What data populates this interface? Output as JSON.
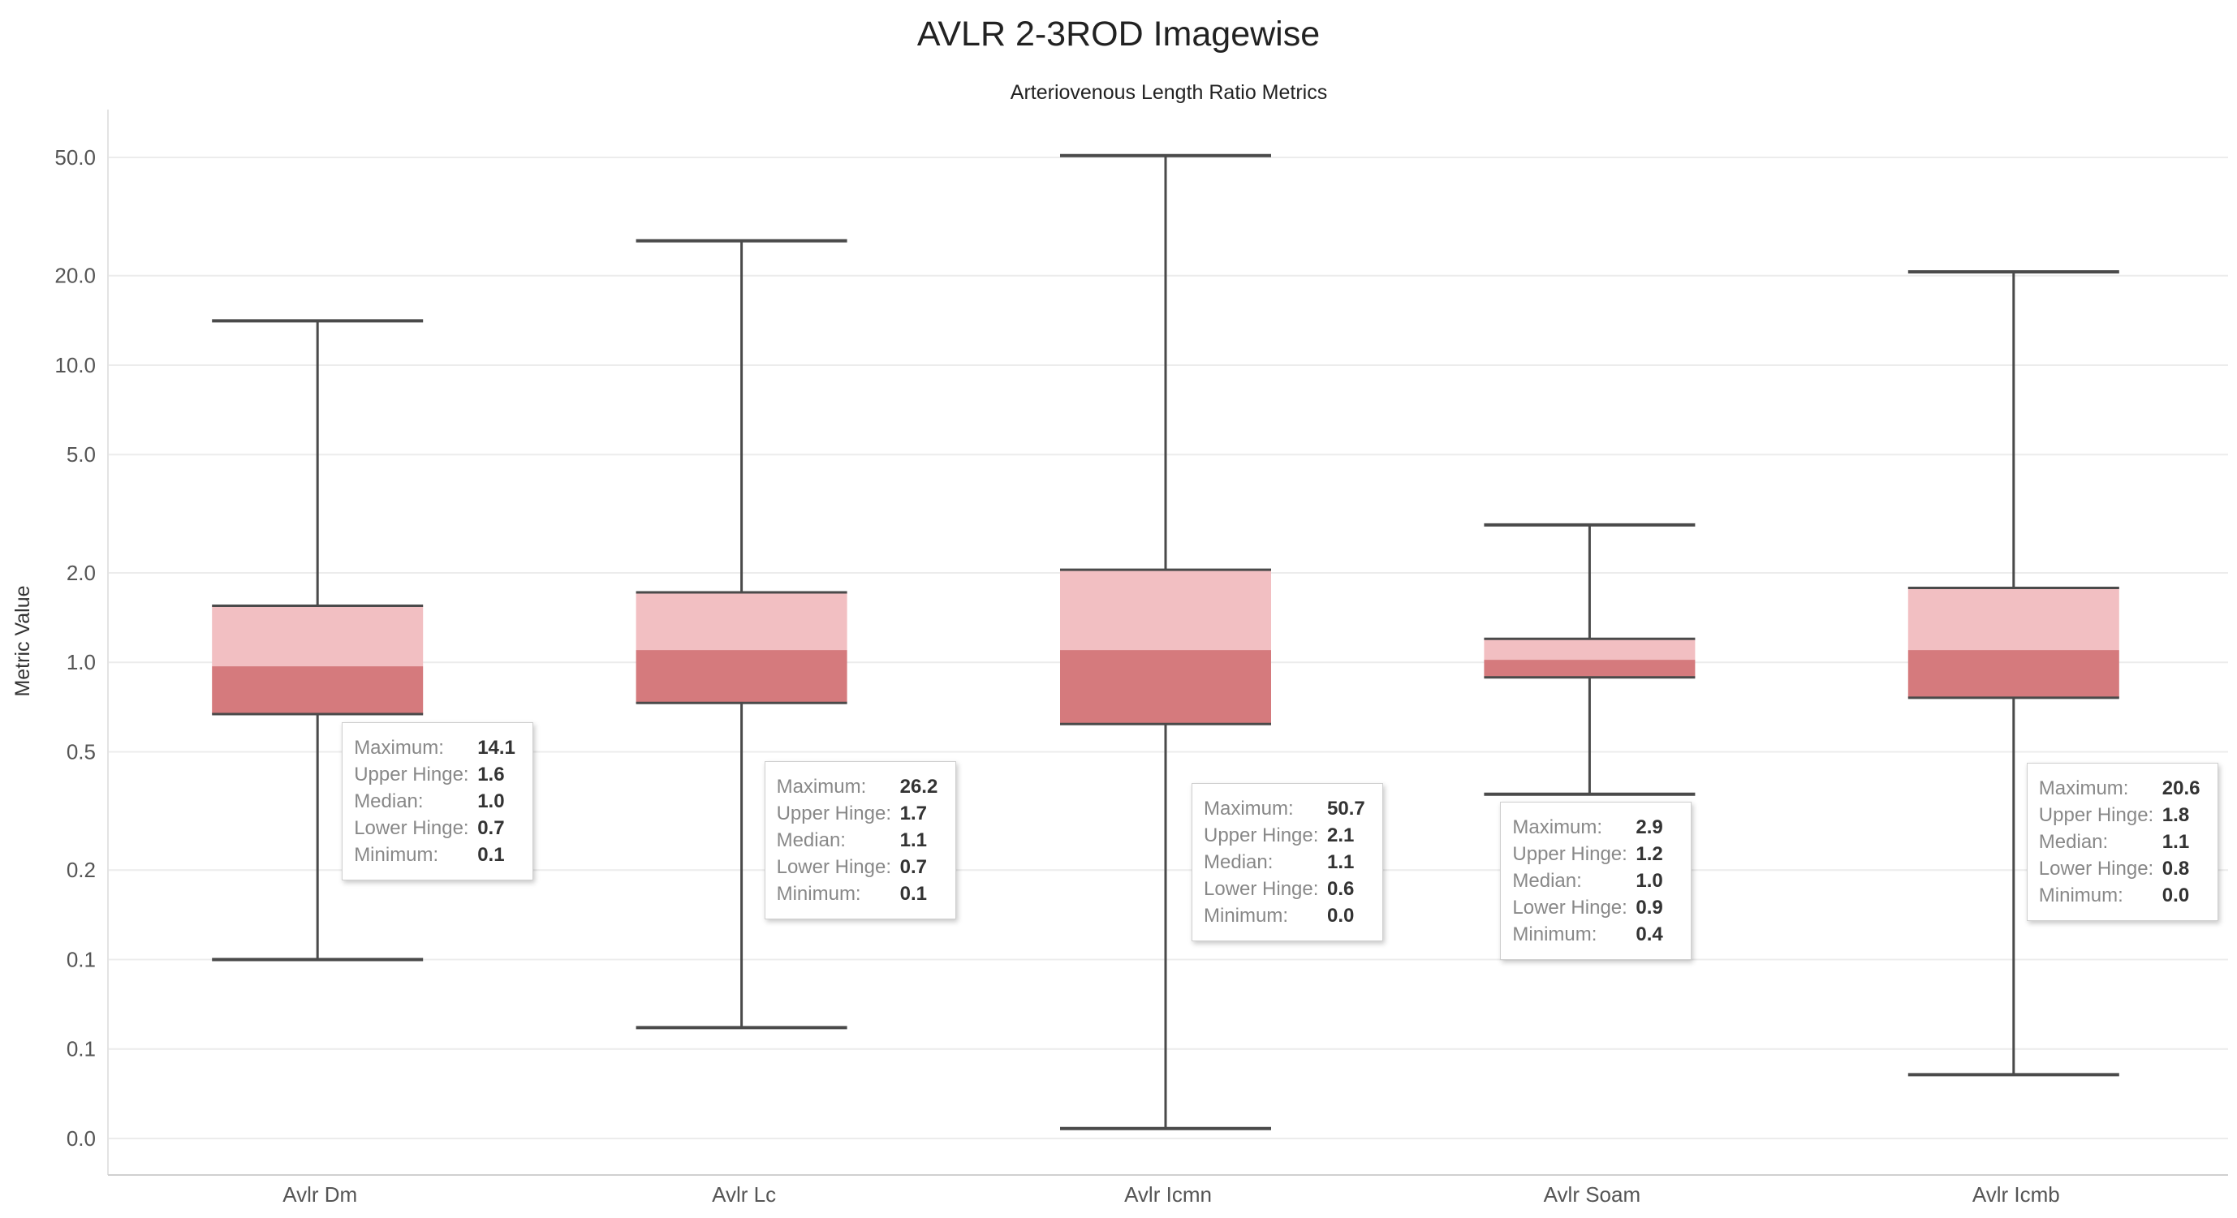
{
  "chart_data": {
    "type": "boxplot",
    "title": "AVLR 2-3ROD Imagewise",
    "subtitle": "Arteriovenous Length Ratio Metrics",
    "ylabel": "Metric Value",
    "xlabel": "",
    "y_scale": "log",
    "y_ticks": [
      {
        "value": 0.025,
        "label": "0.0"
      },
      {
        "value": 0.05,
        "label": "0.1"
      },
      {
        "value": 0.1,
        "label": "0.1"
      },
      {
        "value": 0.2,
        "label": "0.2"
      },
      {
        "value": 0.5,
        "label": "0.5"
      },
      {
        "value": 1.0,
        "label": "1.0"
      },
      {
        "value": 2.0,
        "label": "2.0"
      },
      {
        "value": 5.0,
        "label": "5.0"
      },
      {
        "value": 10.0,
        "label": "10.0"
      },
      {
        "value": 20.0,
        "label": "20.0"
      },
      {
        "value": 50.0,
        "label": "50.0"
      }
    ],
    "grid": true,
    "colors": {
      "upper_box": "#f2bfc2",
      "lower_box": "#d57a7d",
      "whisker": "#4a4a4a"
    },
    "tooltip_labels": [
      "Maximum:",
      "Upper Hinge:",
      "Median:",
      "Lower Hinge:",
      "Minimum:"
    ],
    "boxes": [
      {
        "name": "Avlr Dm",
        "max": 14.1,
        "upper_hinge": 1.55,
        "median": 0.97,
        "lower_hinge": 0.67,
        "min": 0.1,
        "tooltip": [
          "14.1",
          "1.6",
          "1.0",
          "0.7",
          "0.1"
        ]
      },
      {
        "name": "Avlr Lc",
        "max": 26.2,
        "upper_hinge": 1.72,
        "median": 1.1,
        "lower_hinge": 0.73,
        "min": 0.059,
        "tooltip": [
          "26.2",
          "1.7",
          "1.1",
          "0.7",
          "0.1"
        ]
      },
      {
        "name": "Avlr Icmn",
        "max": 50.7,
        "upper_hinge": 2.05,
        "median": 1.1,
        "lower_hinge": 0.62,
        "min": 0.027,
        "tooltip": [
          "50.7",
          "2.1",
          "1.1",
          "0.6",
          "0.0"
        ]
      },
      {
        "name": "Avlr Soam",
        "max": 2.9,
        "upper_hinge": 1.2,
        "median": 1.02,
        "lower_hinge": 0.89,
        "min": 0.36,
        "tooltip": [
          "2.9",
          "1.2",
          "1.0",
          "0.9",
          "0.4"
        ]
      },
      {
        "name": "Avlr Icmb",
        "max": 20.6,
        "upper_hinge": 1.78,
        "median": 1.1,
        "lower_hinge": 0.76,
        "min": 0.041,
        "tooltip": [
          "20.6",
          "1.8",
          "1.1",
          "0.8",
          "0.0"
        ]
      }
    ]
  }
}
